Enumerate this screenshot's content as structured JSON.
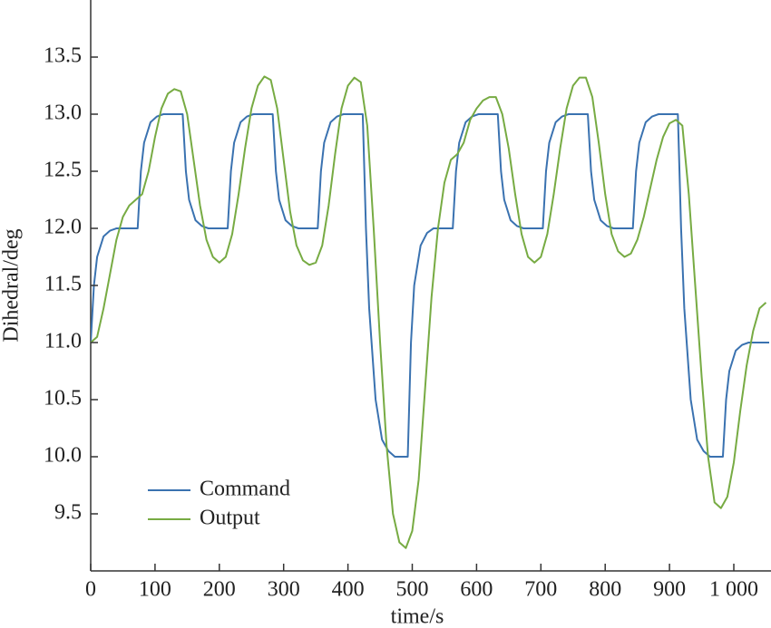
{
  "chart_data": {
    "type": "line",
    "x_label": "time/s",
    "y_label": "Dihedral/deg",
    "xlim": [
      0,
      1055
    ],
    "ylim": [
      9.0,
      14.0
    ],
    "xticks": [
      0,
      100,
      200,
      300,
      400,
      500,
      600,
      700,
      800,
      900,
      {
        "value": 1000,
        "label": "1 000"
      }
    ],
    "yticks": [
      9.5,
      {
        "value": 10.0,
        "label": "10.0"
      },
      10.5,
      {
        "value": 11.0,
        "label": "11.0"
      },
      11.5,
      {
        "value": 12.0,
        "label": "12.0"
      },
      12.5,
      {
        "value": 13.0,
        "label": "13.0"
      },
      13.5
    ],
    "legend": "lower left",
    "series": [
      {
        "name": "Command",
        "color": "#3a72b0",
        "x": [
          0,
          5,
          10,
          20,
          30,
          40,
          73,
          78,
          83,
          93,
          103,
          113,
          143,
          148,
          153,
          163,
          173,
          183,
          213,
          218,
          223,
          233,
          243,
          253,
          283,
          288,
          293,
          303,
          313,
          323,
          353,
          358,
          363,
          373,
          383,
          393,
          423,
          428,
          433,
          443,
          453,
          463,
          473,
          493,
          498,
          503,
          513,
          523,
          533,
          563,
          568,
          573,
          583,
          593,
          603,
          633,
          638,
          643,
          653,
          663,
          673,
          703,
          708,
          713,
          723,
          733,
          743,
          773,
          778,
          783,
          793,
          803,
          813,
          843,
          848,
          853,
          863,
          873,
          883,
          913,
          918,
          923,
          933,
          943,
          953,
          963,
          983,
          988,
          993,
          1003,
          1013,
          1023,
          1055
        ],
        "values": [
          11.0,
          11.5,
          11.75,
          11.93,
          11.98,
          12.0,
          12.0,
          12.5,
          12.75,
          12.93,
          12.98,
          13.0,
          13.0,
          12.5,
          12.25,
          12.07,
          12.02,
          12.0,
          12.0,
          12.5,
          12.75,
          12.93,
          12.98,
          13.0,
          13.0,
          12.5,
          12.25,
          12.07,
          12.02,
          12.0,
          12.0,
          12.5,
          12.75,
          12.93,
          12.98,
          13.0,
          13.0,
          12.0,
          11.3,
          10.5,
          10.15,
          10.05,
          10.0,
          10.0,
          11.0,
          11.5,
          11.85,
          11.96,
          12.0,
          12.0,
          12.5,
          12.75,
          12.93,
          12.98,
          13.0,
          13.0,
          12.5,
          12.25,
          12.07,
          12.02,
          12.0,
          12.0,
          12.5,
          12.75,
          12.93,
          12.98,
          13.0,
          13.0,
          12.5,
          12.25,
          12.07,
          12.02,
          12.0,
          12.0,
          12.5,
          12.75,
          12.93,
          12.98,
          13.0,
          13.0,
          12.0,
          11.3,
          10.5,
          10.15,
          10.05,
          10.0,
          10.0,
          10.5,
          10.75,
          10.93,
          10.98,
          11.0,
          11.0
        ]
      },
      {
        "name": "Output",
        "color": "#77ab43",
        "x": [
          0,
          10,
          20,
          30,
          40,
          50,
          60,
          70,
          80,
          90,
          100,
          110,
          120,
          130,
          140,
          150,
          160,
          170,
          180,
          190,
          200,
          210,
          220,
          230,
          240,
          250,
          260,
          270,
          280,
          290,
          300,
          310,
          320,
          330,
          340,
          350,
          360,
          370,
          380,
          390,
          400,
          410,
          420,
          430,
          440,
          450,
          460,
          470,
          480,
          490,
          500,
          510,
          520,
          530,
          540,
          550,
          560,
          570,
          580,
          590,
          600,
          610,
          620,
          630,
          640,
          650,
          660,
          670,
          680,
          690,
          700,
          710,
          720,
          730,
          740,
          750,
          760,
          770,
          780,
          790,
          800,
          810,
          820,
          830,
          840,
          850,
          860,
          870,
          880,
          890,
          900,
          910,
          920,
          930,
          940,
          950,
          960,
          970,
          980,
          990,
          1000,
          1010,
          1020,
          1030,
          1040,
          1050
        ],
        "values": [
          11.0,
          11.05,
          11.3,
          11.6,
          11.9,
          12.1,
          12.2,
          12.25,
          12.3,
          12.5,
          12.8,
          13.05,
          13.18,
          13.22,
          13.2,
          13.0,
          12.6,
          12.2,
          11.9,
          11.75,
          11.7,
          11.75,
          11.95,
          12.3,
          12.7,
          13.05,
          13.25,
          13.33,
          13.3,
          13.05,
          12.6,
          12.15,
          11.85,
          11.72,
          11.68,
          11.7,
          11.85,
          12.2,
          12.65,
          13.05,
          13.25,
          13.32,
          13.28,
          12.9,
          12.0,
          11.0,
          10.1,
          9.5,
          9.25,
          9.2,
          9.35,
          9.8,
          10.6,
          11.4,
          12.0,
          12.4,
          12.6,
          12.65,
          12.75,
          12.95,
          13.05,
          13.12,
          13.15,
          13.15,
          13.0,
          12.7,
          12.3,
          11.95,
          11.75,
          11.7,
          11.75,
          11.95,
          12.3,
          12.7,
          13.05,
          13.25,
          13.32,
          13.32,
          13.15,
          12.75,
          12.3,
          11.95,
          11.8,
          11.75,
          11.78,
          11.9,
          12.1,
          12.35,
          12.6,
          12.8,
          12.92,
          12.95,
          12.9,
          12.3,
          11.5,
          10.7,
          10.0,
          9.6,
          9.55,
          9.65,
          9.95,
          10.4,
          10.8,
          11.1,
          11.3,
          11.35
        ]
      }
    ]
  }
}
